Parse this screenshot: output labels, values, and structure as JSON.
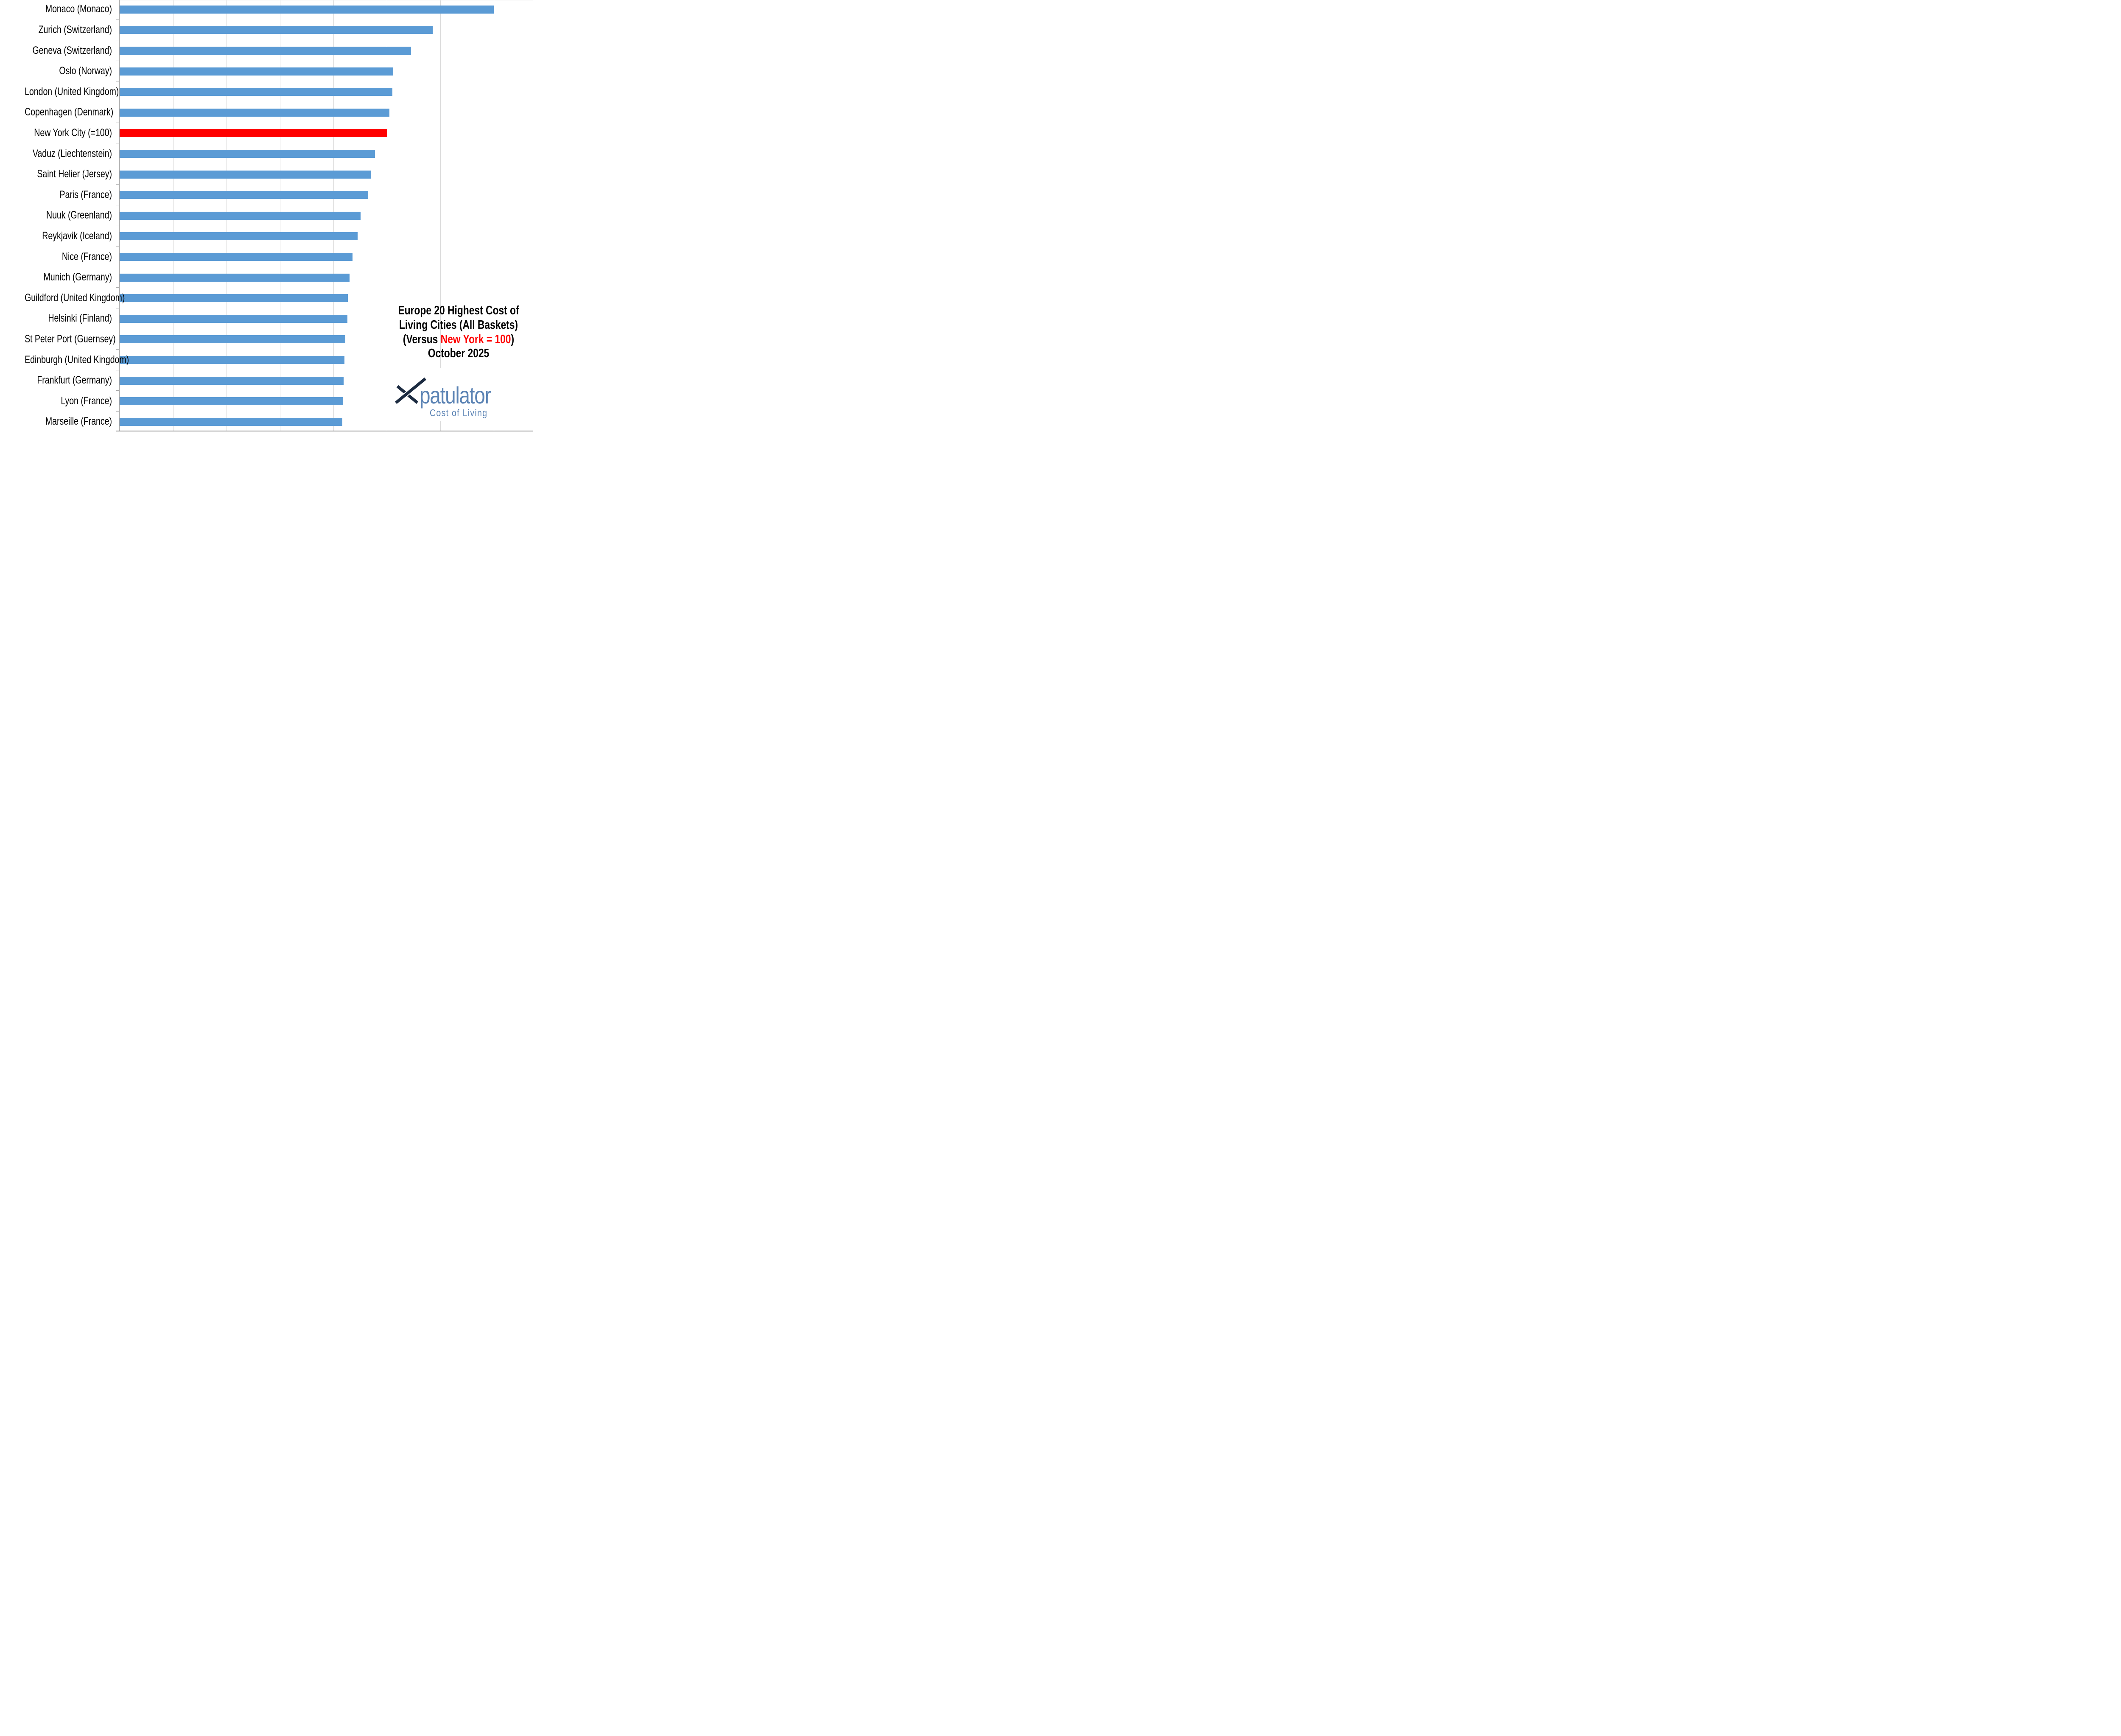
{
  "chart_data": {
    "type": "bar",
    "orientation": "horizontal",
    "title": "Europe 20 Highest Cost of Living Cities (All Baskets) (Versus New York = 100) October 2025",
    "categories": [
      "Monaco (Monaco)",
      "Zurich (Switzerland)",
      "Geneva (Switzerland)",
      "Oslo (Norway)",
      "London (United Kingdom)",
      "Copenhagen (Denmark)",
      "New York City (=100)",
      "Vaduz (Liechtenstein)",
      "Saint Helier (Jersey)",
      "Paris (France)",
      "Nuuk (Greenland)",
      "Reykjavik (Iceland)",
      "Nice (France)",
      "Munich (Germany)",
      "Guildford (United Kingdom)",
      "Helsinki (Finland)",
      "St Peter Port (Guernsey)",
      "Edinburgh (United Kingdom)",
      "Frankfurt (Germany)",
      "Lyon (France)",
      "Marseille (France)"
    ],
    "values": [
      140.1,
      117.1,
      109.1,
      102.4,
      102.1,
      101.0,
      100.0,
      95.5,
      94.2,
      93.1,
      90.2,
      89.0,
      87.1,
      86.0,
      85.4,
      85.3,
      84.4,
      84.2,
      83.9,
      83.7,
      83.4
    ],
    "xlabel": "",
    "ylabel": "",
    "xlim": [
      0,
      154.8
    ],
    "gridlines_at": [
      20,
      40,
      60,
      80,
      100,
      120,
      140
    ],
    "grid": true,
    "legend": false,
    "highlight_index": 6,
    "highlight_category": "New York City (=100)",
    "bar_color_default": "#5b9bd5",
    "bar_color_highlight": "#ff0000"
  },
  "title": {
    "line1": "Europe 20 Highest Cost of",
    "line2": "Living Cities (All Baskets)",
    "line3_pre": "(Versus ",
    "line3_red": "New York = 100",
    "line3_post": ")",
    "line4": "October 2025",
    "text_color": "#000000",
    "highlight_color": "#ff0000"
  },
  "logo": {
    "brand": "patulator",
    "tagline": "Cost of Living",
    "x_color": "#1c2b41",
    "text_color": "#5b83b4"
  },
  "axes": {
    "gridline_color": "#d9d9d9",
    "y_axis_color": "#a6a6a6",
    "x_axis_color": "#898989",
    "tick_color": "#a6a6a6"
  }
}
